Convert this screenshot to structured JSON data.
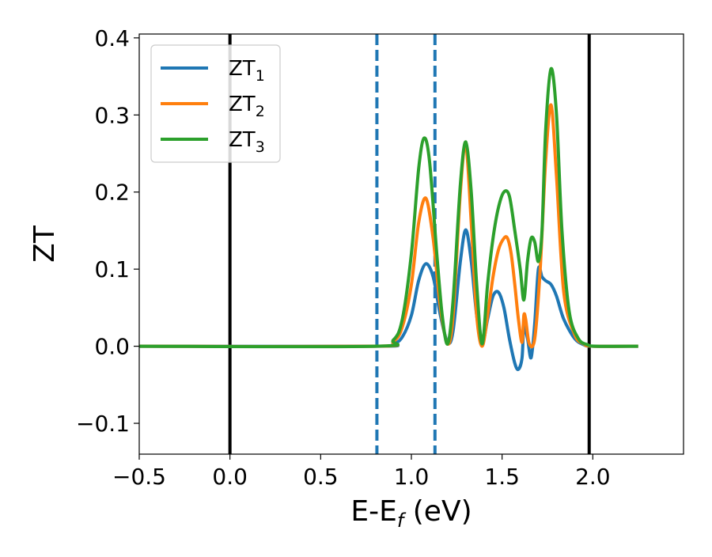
{
  "chart_data": {
    "type": "line",
    "title": "",
    "xlabel": "E-E",
    "xlabel_sub": "f",
    "xlabel_unit": " (eV)",
    "ylabel": "ZT",
    "xlim": [
      -0.5,
      2.5
    ],
    "ylim": [
      -0.14,
      0.405
    ],
    "xticks": [
      -0.5,
      0.0,
      0.5,
      1.0,
      1.5,
      2.0
    ],
    "xtick_labels": [
      "−0.5",
      "0.0",
      "0.5",
      "1.0",
      "1.5",
      "2.0"
    ],
    "yticks": [
      -0.1,
      0.0,
      0.1,
      0.2,
      0.3,
      0.4
    ],
    "ytick_labels": [
      "−0.1",
      "0.0",
      "0.1",
      "0.2",
      "0.3",
      "0.4"
    ],
    "grid": false,
    "legend_position": "top-left",
    "vlines": [
      {
        "x": 0.0,
        "color": "#000000",
        "style": "solid"
      },
      {
        "x": 1.98,
        "color": "#000000",
        "style": "solid"
      },
      {
        "x": 0.81,
        "color": "#1f77b4",
        "style": "dashed"
      },
      {
        "x": 1.13,
        "color": "#1f77b4",
        "style": "dashed"
      }
    ],
    "series": [
      {
        "name": "ZT",
        "sub": "1",
        "color": "#1f77b4",
        "x": [
          -0.5,
          0.8,
          0.9,
          0.95,
          1.0,
          1.04,
          1.08,
          1.12,
          1.16,
          1.2,
          1.23,
          1.27,
          1.3,
          1.33,
          1.36,
          1.39,
          1.42,
          1.45,
          1.48,
          1.51,
          1.54,
          1.57,
          1.59,
          1.61,
          1.62,
          1.64,
          1.66,
          1.68,
          1.7,
          1.72,
          1.74,
          1.77,
          1.8,
          1.84,
          1.9,
          1.95,
          2.0,
          2.25
        ],
        "y": [
          0.0,
          0.0,
          0.003,
          0.012,
          0.04,
          0.085,
          0.107,
          0.09,
          0.04,
          0.005,
          0.02,
          0.11,
          0.151,
          0.11,
          0.04,
          0.003,
          0.035,
          0.065,
          0.07,
          0.05,
          0.01,
          -0.022,
          -0.03,
          -0.015,
          0.025,
          0.01,
          -0.015,
          0.03,
          0.1,
          0.09,
          0.085,
          0.08,
          0.065,
          0.035,
          0.01,
          0.002,
          0.0,
          0.0
        ]
      },
      {
        "name": "ZT",
        "sub": "2",
        "color": "#ff7f0e",
        "x": [
          -0.5,
          0.8,
          0.9,
          0.95,
          1.0,
          1.04,
          1.08,
          1.12,
          1.16,
          1.2,
          1.23,
          1.27,
          1.3,
          1.33,
          1.36,
          1.39,
          1.42,
          1.45,
          1.48,
          1.51,
          1.53,
          1.55,
          1.57,
          1.59,
          1.61,
          1.62,
          1.63,
          1.65,
          1.68,
          1.71,
          1.74,
          1.77,
          1.8,
          1.84,
          1.9,
          1.95,
          2.0,
          2.25
        ],
        "y": [
          0.0,
          0.0,
          0.006,
          0.025,
          0.08,
          0.16,
          0.192,
          0.14,
          0.05,
          0.003,
          0.04,
          0.2,
          0.262,
          0.16,
          0.04,
          0.0,
          0.04,
          0.09,
          0.125,
          0.14,
          0.14,
          0.12,
          0.08,
          0.035,
          0.005,
          0.04,
          0.035,
          0.003,
          0.01,
          0.1,
          0.24,
          0.313,
          0.22,
          0.07,
          0.015,
          0.003,
          0.0,
          0.0
        ]
      },
      {
        "name": "ZT",
        "sub": "3",
        "color": "#2ca02c",
        "x": [
          -0.5,
          0.8,
          0.9,
          0.95,
          1.0,
          1.04,
          1.07,
          1.1,
          1.14,
          1.17,
          1.2,
          1.23,
          1.27,
          1.3,
          1.33,
          1.36,
          1.39,
          1.42,
          1.45,
          1.48,
          1.51,
          1.54,
          1.57,
          1.6,
          1.62,
          1.64,
          1.66,
          1.68,
          1.7,
          1.72,
          1.74,
          1.77,
          1.8,
          1.83,
          1.87,
          1.92,
          1.97,
          2.02,
          2.25
        ],
        "y": [
          0.0,
          0.0,
          0.008,
          0.035,
          0.12,
          0.23,
          0.27,
          0.24,
          0.12,
          0.04,
          0.003,
          0.06,
          0.21,
          0.265,
          0.2,
          0.08,
          0.003,
          0.08,
          0.14,
          0.18,
          0.2,
          0.195,
          0.15,
          0.1,
          0.06,
          0.11,
          0.14,
          0.135,
          0.11,
          0.15,
          0.28,
          0.36,
          0.3,
          0.15,
          0.045,
          0.01,
          0.002,
          0.0,
          0.0
        ]
      }
    ]
  }
}
